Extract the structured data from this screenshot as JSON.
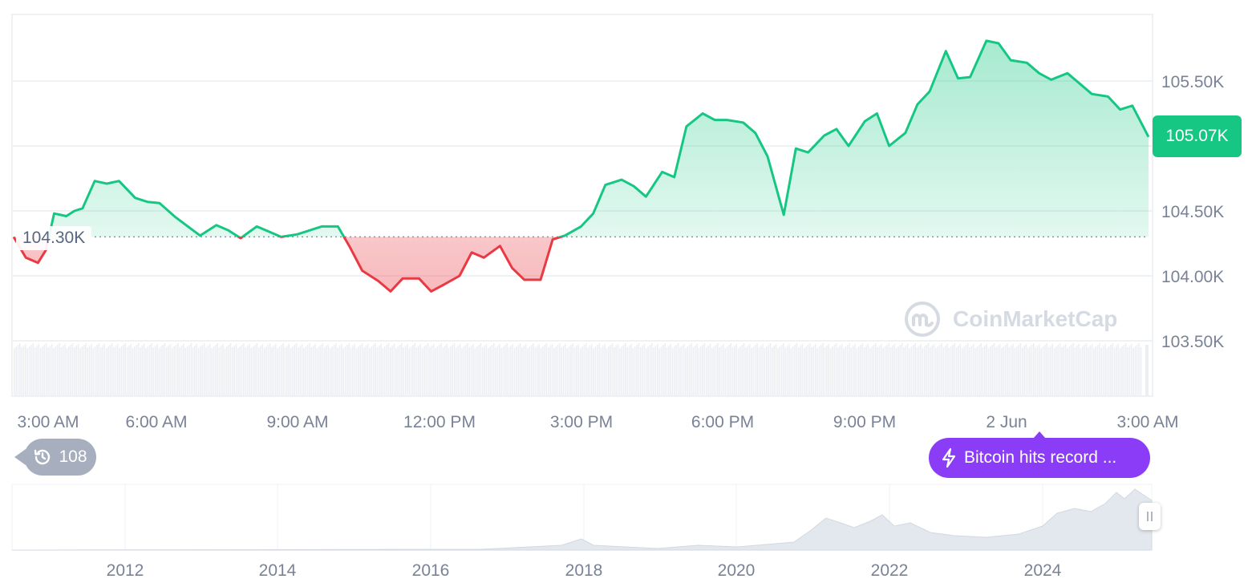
{
  "chart_data": {
    "type": "area",
    "title": "",
    "xlabel": "",
    "ylabel": "",
    "ylim": [
      103400,
      105900
    ],
    "y_ticks": [
      "105.50K",
      "105.00K",
      "104.50K",
      "104.00K",
      "103.50K"
    ],
    "y_tick_values": [
      105500,
      105000,
      104500,
      104000,
      103500
    ],
    "x_ticks": [
      "3:00 AM",
      "6:00 AM",
      "9:00 AM",
      "12:00 PM",
      "3:00 PM",
      "6:00 PM",
      "9:00 PM",
      "2 Jun",
      "3:00 AM"
    ],
    "grid": true,
    "reference_price": 104300,
    "reference_label": "104.30K",
    "last_price_label": "105.07K",
    "up_color": "#16c784",
    "down_color": "#ea3943",
    "series": [
      {
        "x_hours": [
          0,
          0.3,
          0.6,
          0.8,
          1.0,
          1.3,
          1.5,
          1.7,
          2.0,
          2.3,
          2.6,
          3.0,
          3.3,
          3.6,
          4.0,
          4.3,
          4.6,
          5.0,
          5.3,
          5.6,
          6.0,
          6.3,
          6.6,
          7.0,
          7.3,
          7.6,
          8.0,
          8.3,
          8.6,
          9.0,
          9.3,
          9.6,
          10.0,
          10.3,
          10.6,
          11.0,
          11.3,
          11.6,
          12.0,
          12.3,
          12.6,
          13.0,
          13.3,
          13.6,
          14.0,
          14.3,
          14.6,
          15.0,
          15.3,
          15.6,
          16.0,
          16.3,
          16.6,
          17.0,
          17.3,
          17.6,
          18.0,
          18.3,
          18.6,
          19.0,
          19.3,
          19.6,
          20.0,
          20.3,
          20.6,
          21.0,
          21.3,
          21.6,
          22.0,
          22.3,
          22.6,
          23.0,
          23.3,
          23.6,
          24.0,
          24.3,
          24.6,
          25.0,
          25.3,
          25.6,
          26.0,
          26.3,
          26.6,
          27.0,
          27.3,
          27.6,
          28.0
        ],
        "price": [
          104300,
          104140,
          104100,
          104200,
          104480,
          104460,
          104500,
          104520,
          104730,
          104710,
          104730,
          104600,
          104570,
          104560,
          104450,
          104380,
          104310,
          104390,
          104350,
          104290,
          104380,
          104340,
          104300,
          104320,
          104350,
          104380,
          104380,
          104220,
          104040,
          103960,
          103880,
          103980,
          103980,
          103880,
          103930,
          104000,
          104180,
          104140,
          104230,
          104060,
          103970,
          103970,
          104280,
          104310,
          104380,
          104480,
          104700,
          104740,
          104690,
          104610,
          104800,
          104760,
          105150,
          105250,
          105200,
          105200,
          105180,
          105100,
          104920,
          104470,
          104980,
          104950,
          105080,
          105130,
          105000,
          105190,
          105250,
          105000,
          105100,
          105320,
          105420,
          105730,
          105520,
          105530,
          105810,
          105790,
          105660,
          105640,
          105560,
          105510,
          105560,
          105480,
          105400,
          105380,
          105280,
          105310,
          105070
        ]
      }
    ],
    "volume_bars": 600,
    "navigator": {
      "x_ticks": [
        "2012",
        "2014",
        "2016",
        "2018",
        "2020",
        "2022",
        "2024"
      ]
    }
  },
  "ui": {
    "news_label": "Bitcoin hits record ...",
    "history_count": "108",
    "watermark": "CoinMarketCap",
    "bolt_icon": "lightning-icon",
    "history_icon": "history-clock-icon",
    "brand_icon": "coinmarketcap-logo"
  }
}
